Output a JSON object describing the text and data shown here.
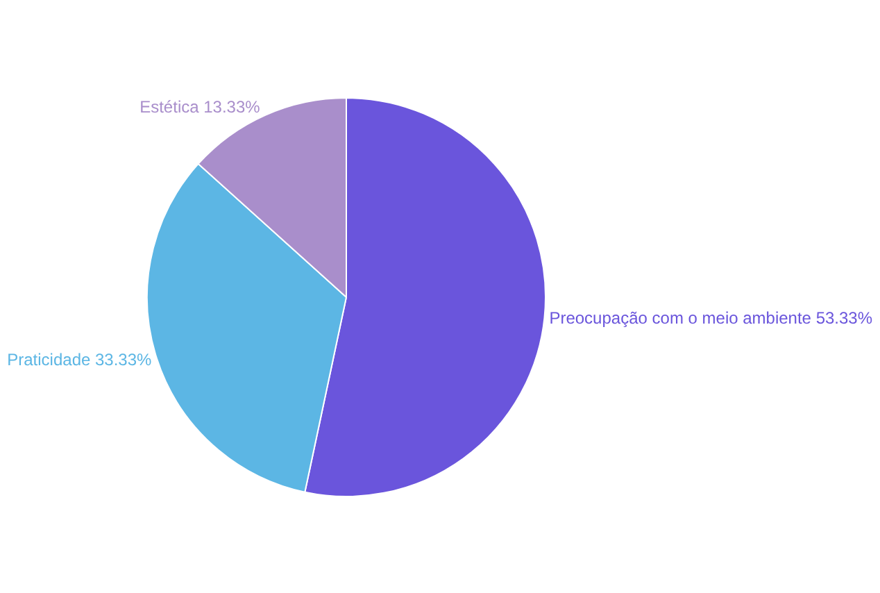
{
  "chart_data": {
    "type": "pie",
    "categories": [
      "Preocupação com o meio ambiente",
      "Praticidade",
      "Estética"
    ],
    "values": [
      53.33,
      33.33,
      13.33
    ],
    "value_labels": [
      "53.33%",
      "33.33%",
      "13.33%"
    ],
    "colors": [
      "#6a55dc",
      "#5cb6e4",
      "#a98ecb"
    ],
    "legend": false
  }
}
